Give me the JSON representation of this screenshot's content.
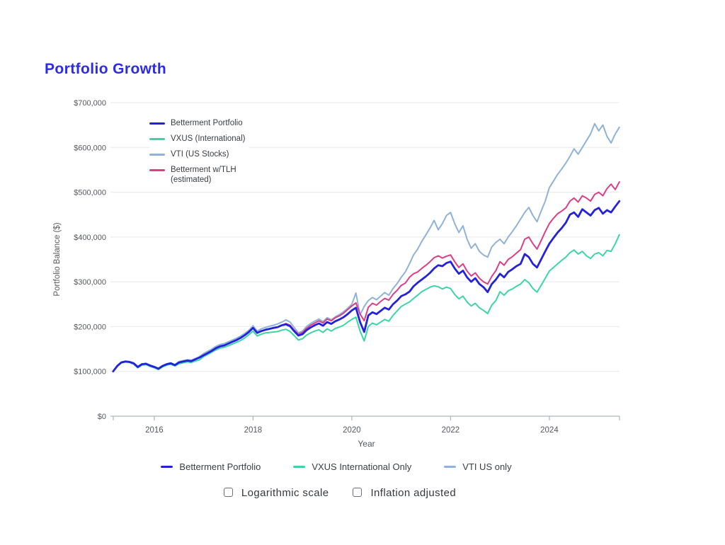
{
  "page": {
    "title": "Portfolio Growth",
    "title_color": "#2d2bea"
  },
  "chart_data": {
    "type": "line",
    "title": "Portfolio Growth",
    "xlabel": "Year",
    "ylabel": "Portfolio Balance ($)",
    "xlim": [
      2015.17,
      2025.42
    ],
    "ylim": [
      0,
      700000
    ],
    "grid": "horizontal",
    "legend_position": "top-left-inside",
    "axis_color": "#a9b6c2",
    "grid_color": "#e8e8e8",
    "tick_text_color": "#55585e",
    "y_ticks": [
      {
        "v": 0,
        "label": "$0"
      },
      {
        "v": 100000,
        "label": "$100,000"
      },
      {
        "v": 200000,
        "label": "$200,000"
      },
      {
        "v": 300000,
        "label": "$300,000"
      },
      {
        "v": 400000,
        "label": "$400,000"
      },
      {
        "v": 500000,
        "label": "$500,000"
      },
      {
        "v": 600000,
        "label": "$600,000"
      },
      {
        "v": 700000,
        "label": "$700,000"
      }
    ],
    "x_ticks": [
      {
        "v": 2016,
        "label": "2016"
      },
      {
        "v": 2018,
        "label": "2018"
      },
      {
        "v": 2020,
        "label": "2020"
      },
      {
        "v": 2022,
        "label": "2022"
      },
      {
        "v": 2024,
        "label": "2024"
      }
    ],
    "edge_ticks": [
      2015.17,
      2025.42
    ],
    "x": {
      "start": 2015.1667,
      "step": 0.0833333,
      "count": 124,
      "unit": "decimal-year, monthly"
    },
    "value_unit": "USD thousands",
    "value_scale": 1000,
    "series": [
      {
        "name": "VTI (US Stocks)",
        "color": "#8fb3d7",
        "width": 2,
        "values": [
          100,
          113,
          121,
          123,
          122,
          119,
          111,
          117,
          118,
          114,
          111,
          107,
          113,
          117,
          119,
          115,
          122,
          124,
          126,
          125,
          129,
          133,
          140,
          145,
          150,
          156,
          160,
          162,
          166,
          170,
          174,
          179,
          185,
          192,
          202,
          190,
          195,
          198,
          201,
          203,
          206,
          210,
          215,
          210,
          198,
          186,
          190,
          200,
          207,
          212,
          217,
          211,
          220,
          215,
          222,
          227,
          233,
          241,
          250,
          275,
          226,
          245,
          258,
          265,
          260,
          268,
          276,
          270,
          285,
          296,
          310,
          322,
          340,
          360,
          373,
          390,
          405,
          420,
          437,
          416,
          430,
          448,
          455,
          430,
          410,
          425,
          395,
          375,
          385,
          368,
          360,
          355,
          378,
          388,
          395,
          385,
          400,
          412,
          425,
          440,
          455,
          466,
          448,
          434,
          458,
          480,
          510,
          525,
          540,
          552,
          565,
          580,
          597,
          585,
          600,
          615,
          630,
          653,
          637,
          650,
          625,
          610,
          630,
          645
        ]
      },
      {
        "name": "VXUS (International)",
        "color": "#3dd6a3",
        "width": 2,
        "values": [
          100,
          111,
          119,
          121,
          120,
          116,
          108,
          114,
          115,
          111,
          108,
          104,
          110,
          114,
          116,
          112,
          117,
          119,
          121,
          120,
          123,
          126,
          133,
          138,
          143,
          148,
          152,
          154,
          157,
          161,
          165,
          169,
          175,
          182,
          190,
          179,
          183,
          186,
          187,
          188,
          189,
          192,
          194,
          189,
          180,
          170,
          173,
          181,
          186,
          190,
          193,
          187,
          195,
          190,
          196,
          199,
          203,
          210,
          216,
          221,
          190,
          168,
          200,
          208,
          204,
          210,
          216,
          212,
          225,
          235,
          245,
          250,
          255,
          263,
          270,
          278,
          283,
          288,
          291,
          289,
          284,
          288,
          285,
          272,
          262,
          268,
          255,
          246,
          252,
          242,
          236,
          229,
          248,
          258,
          278,
          270,
          280,
          284,
          290,
          295,
          305,
          298,
          285,
          277,
          292,
          308,
          324,
          332,
          340,
          348,
          355,
          365,
          371,
          362,
          368,
          358,
          352,
          362,
          365,
          358,
          370,
          368,
          385,
          405
        ]
      },
      {
        "name": "Betterment w/TLH (estimated)",
        "color": "#db3f86",
        "width": 2,
        "values": [
          100,
          112,
          120,
          122,
          121,
          118,
          110,
          116,
          117,
          113,
          110,
          106,
          112,
          116,
          118,
          114,
          120,
          122,
          124,
          123,
          127,
          131,
          136,
          141,
          146,
          152,
          156,
          158,
          162,
          166,
          170,
          175,
          181,
          188,
          197,
          186,
          190,
          193,
          195,
          197,
          199,
          203,
          207,
          203,
          192,
          183,
          187,
          196,
          203,
          208,
          213,
          208,
          217,
          213,
          220,
          224,
          230,
          238,
          246,
          253,
          228,
          213,
          243,
          252,
          248,
          256,
          263,
          259,
          272,
          281,
          292,
          297,
          310,
          318,
          322,
          330,
          337,
          345,
          354,
          358,
          353,
          357,
          360,
          345,
          332,
          340,
          324,
          313,
          320,
          308,
          300,
          295,
          312,
          325,
          345,
          337,
          350,
          356,
          364,
          372,
          395,
          400,
          385,
          373,
          392,
          412,
          430,
          442,
          452,
          458,
          465,
          480,
          487,
          478,
          492,
          487,
          480,
          495,
          500,
          492,
          508,
          518,
          506,
          523
        ]
      },
      {
        "name": "Betterment Portfolio",
        "color": "#2222dd",
        "width": 2.8,
        "values": [
          100,
          112,
          120,
          122,
          121,
          118,
          110,
          116,
          117,
          113,
          110,
          106,
          112,
          116,
          118,
          114,
          120,
          122,
          124,
          123,
          127,
          131,
          136,
          141,
          146,
          152,
          156,
          158,
          162,
          166,
          170,
          175,
          181,
          188,
          197,
          186,
          190,
          193,
          195,
          197,
          199,
          203,
          205,
          201,
          190,
          180,
          183,
          192,
          198,
          203,
          207,
          202,
          210,
          206,
          212,
          216,
          221,
          228,
          236,
          242,
          210,
          188,
          225,
          232,
          228,
          235,
          242,
          238,
          250,
          258,
          268,
          272,
          278,
          290,
          298,
          305,
          312,
          320,
          330,
          337,
          335,
          342,
          345,
          330,
          318,
          325,
          310,
          300,
          308,
          295,
          288,
          277,
          295,
          305,
          318,
          310,
          322,
          328,
          335,
          340,
          362,
          355,
          340,
          332,
          350,
          368,
          385,
          398,
          410,
          420,
          432,
          450,
          455,
          445,
          462,
          455,
          448,
          460,
          465,
          452,
          460,
          455,
          468,
          480
        ]
      }
    ]
  },
  "chart_legend": {
    "items": [
      {
        "label": "Betterment Portfolio",
        "label2": "",
        "color": "#2222dd"
      },
      {
        "label": "VXUS (International)",
        "label2": "",
        "color": "#3dd6a3"
      },
      {
        "label": "VTI (US Stocks)",
        "label2": "",
        "color": "#8fb3d7"
      },
      {
        "label": "Betterment w/TLH",
        "label2": "(estimated)",
        "color": "#db3f86"
      }
    ]
  },
  "bottom_legend": {
    "items": [
      {
        "label": "Betterment Portfolio",
        "color": "#2222dd"
      },
      {
        "label": "VXUS International Only",
        "color": "#3dd6a3"
      },
      {
        "label": "VTI US only",
        "color": "#8fb3d7"
      }
    ]
  },
  "controls": {
    "checkboxes": [
      {
        "label": "Logarithmic scale",
        "checked": false
      },
      {
        "label": "Inflation adjusted",
        "checked": false
      }
    ]
  }
}
